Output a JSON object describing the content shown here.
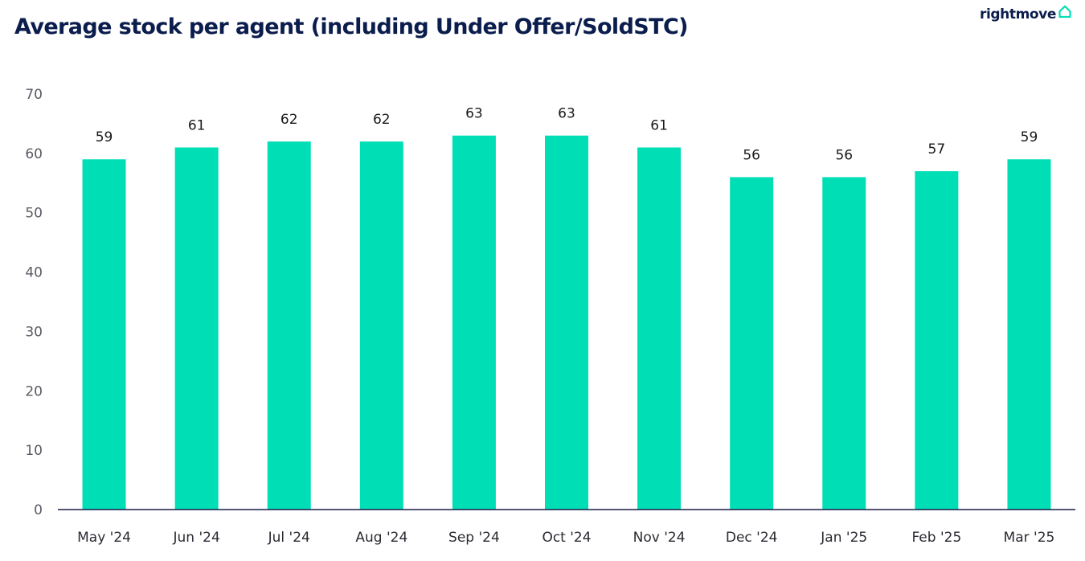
{
  "header": {
    "title": "Average stock per agent (including Under Offer/SoldSTC)",
    "logo_text": "rightmove",
    "logo_icon": "house-outline-icon"
  },
  "colors": {
    "bar": "#00deb6",
    "title": "#0b1d4d",
    "axis": "#1c1c4a",
    "logo_accent": "#00deb6"
  },
  "chart_data": {
    "type": "bar",
    "title": "Average stock per agent (including Under Offer/SoldSTC)",
    "xlabel": "",
    "ylabel": "",
    "categories": [
      "May '24",
      "Jun '24",
      "Jul '24",
      "Aug '24",
      "Sep '24",
      "Oct '24",
      "Nov '24",
      "Dec '24",
      "Jan '25",
      "Feb '25",
      "Mar '25"
    ],
    "values": [
      59,
      61,
      62,
      62,
      63,
      63,
      61,
      56,
      56,
      57,
      59
    ],
    "ylim": [
      0,
      70
    ],
    "yticks": [
      0,
      10,
      20,
      30,
      40,
      50,
      60,
      70
    ],
    "grid": false,
    "legend": "none",
    "data_labels": true
  }
}
